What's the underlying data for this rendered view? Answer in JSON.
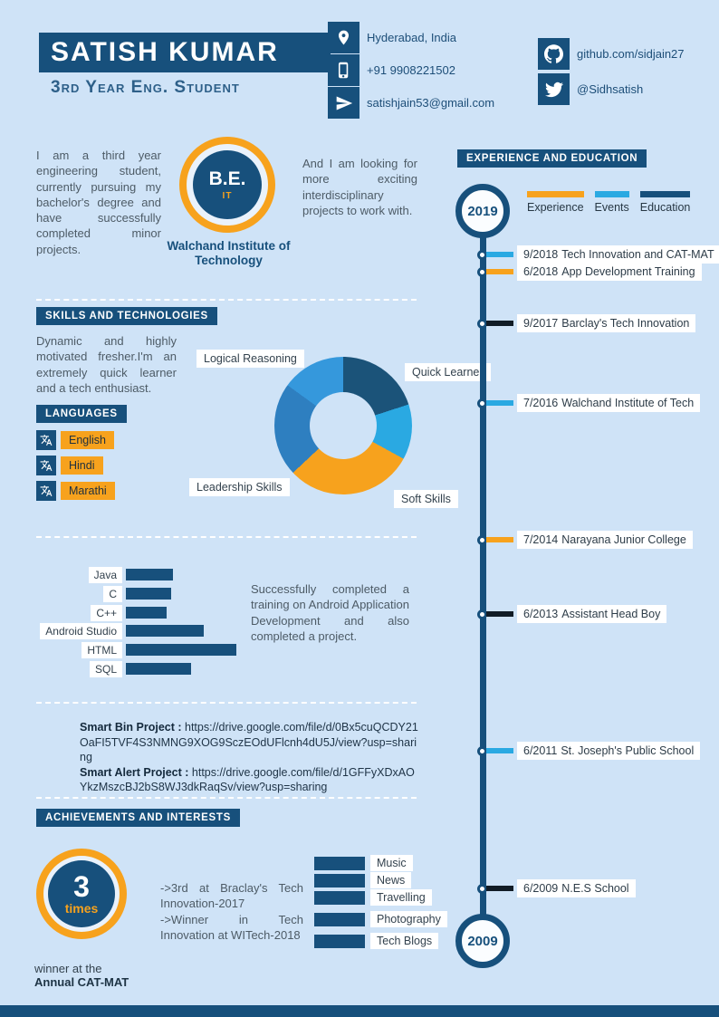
{
  "page": {
    "bg": "#cfe3f7",
    "navy": "#17507c",
    "orange": "#f7a21d",
    "lightblue": "#2aa9e2"
  },
  "header": {
    "name": "SATISH KUMAR",
    "subtitle": "3rd Year Eng. Student",
    "contacts": [
      {
        "icon": "location-icon",
        "text": "Hyderabad, India"
      },
      {
        "icon": "phone-icon",
        "text": "+91 9908221502"
      },
      {
        "icon": "send-icon",
        "text": "satishjain53@gmail.com"
      }
    ],
    "socials": [
      {
        "icon": "github-icon",
        "text": "github.com/sidjain27"
      },
      {
        "icon": "twitter-icon",
        "text": "@Sidhsatish"
      }
    ]
  },
  "about": {
    "intro": "I am a third year engineering student, currently pursuing my bachelor's degree and have successfully completed minor projects.",
    "degree": "B.E.",
    "degree_field": "IT",
    "college": "Walchand Institute of Technology",
    "looking": "And I am looking for more exciting interdisciplinary projects to work with."
  },
  "skills": {
    "heading": "SKILLS AND TECHNOLOGIES",
    "description": "Dynamic and highly motivated fresher.I'm an extremely quick learner and a tech enthusiast."
  },
  "languages": {
    "heading": "LANGUAGES",
    "items": [
      "English",
      "Hindi",
      "Marathi"
    ]
  },
  "android_note": "Successfully completed a training on Android Application Development and also completed a project.",
  "projects": [
    {
      "name": "Smart Bin Project",
      "url": "https://drive.google.com/file/d/0Bx5cuQCDY21OaFI5TVF4S3NMNG9XOG9SczEOdUFlcnh4dU5J/view?usp=sharing"
    },
    {
      "name": "Smart Alert Project",
      "url": "https://drive.google.com/file/d/1GFFyXDxAOYkzMszcBJ2bS8WJ3dkRaqSv/view?usp=sharing"
    }
  ],
  "achievements": {
    "heading": "ACHIEVEMENTS AND INTERESTS",
    "badge_number": "3",
    "badge_label": "times",
    "winner_line1": "winner at the",
    "winner_line2": "Annual CAT-MAT",
    "lines": [
      "->3rd at Braclay's Tech Innovation-2017",
      "->Winner in Tech Innovation at WITech-2018"
    ]
  },
  "interests": [
    "Music",
    "News",
    "Travelling",
    "Photography",
    "Tech Blogs"
  ],
  "timeline": {
    "heading": "EXPERIENCE AND EDUCATION",
    "start_year": "2019",
    "end_year": "2009",
    "legend": [
      {
        "label": "Experience",
        "color": "#f7a21d"
      },
      {
        "label": "Events",
        "color": "#2aa9e2"
      },
      {
        "label": "Education",
        "color": "#17507c"
      }
    ],
    "items": [
      {
        "date": "9/2018",
        "title": "Tech Innovation and CAT-MAT",
        "color": "#2aa9e2"
      },
      {
        "date": "6/2018",
        "title": "App Development Training",
        "color": "#f7a21d"
      },
      {
        "date": "9/2017",
        "title": "Barclay's Tech Innovation",
        "color": "#111c26"
      },
      {
        "date": "7/2016",
        "title": "Walchand Institute of Tech",
        "color": "#2aa9e2"
      },
      {
        "date": "7/2014",
        "title": "Narayana Junior College",
        "color": "#f7a21d"
      },
      {
        "date": "6/2013",
        "title": "Assistant Head Boy",
        "color": "#111c26"
      },
      {
        "date": "6/2011",
        "title": "St. Joseph's Public School",
        "color": "#2aa9e2"
      },
      {
        "date": "6/2009",
        "title": "N.E.S School",
        "color": "#111c26"
      }
    ]
  },
  "chart_data": [
    {
      "type": "pie",
      "title": "Skills donut",
      "legend_position": "around",
      "segments": [
        {
          "label": "Quick Learner",
          "value": 20,
          "color": "#1b5379"
        },
        {
          "label": "",
          "value": 13,
          "color": "#2aa9e2"
        },
        {
          "label": "Soft Skills",
          "value": 30,
          "color": "#f7a21d"
        },
        {
          "label": "Leadership Skills",
          "value": 22,
          "color": "#2e7fc0"
        },
        {
          "label": "Logical Reasoning",
          "value": 15,
          "color": "#3598dc"
        }
      ]
    },
    {
      "type": "bar",
      "title": "Technologies",
      "categories": [
        "Java",
        "C",
        "C++",
        "Android Studio",
        "HTML",
        "SQL"
      ],
      "values": [
        52,
        50,
        45,
        86,
        122,
        72
      ],
      "unit": "px",
      "color": "#17507c",
      "xlabel": "",
      "ylabel": ""
    }
  ]
}
